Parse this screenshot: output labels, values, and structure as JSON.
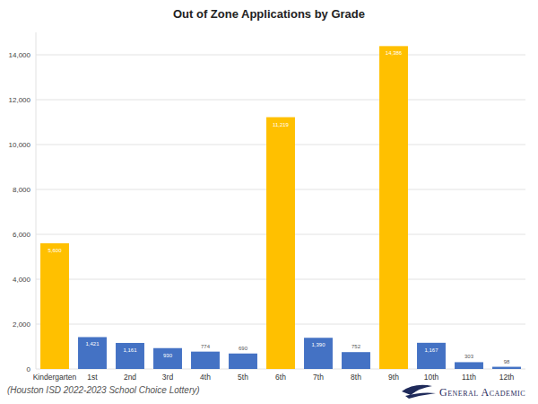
{
  "chart_data": {
    "type": "bar",
    "title": "Out of Zone Applications by Grade",
    "categories": [
      "Kindergarten",
      "1st",
      "2nd",
      "3rd",
      "4th",
      "5th",
      "6th",
      "7th",
      "8th",
      "9th",
      "10th",
      "11th",
      "12th"
    ],
    "values": [
      5600,
      1421,
      1161,
      930,
      774,
      690,
      11219,
      1390,
      752,
      14386,
      1167,
      303,
      98
    ],
    "value_labels": [
      "5,600",
      "1,421",
      "1,161",
      "930",
      "774",
      "690",
      "11,219",
      "1,390",
      "752",
      "14,386",
      "1,167",
      "303",
      "98"
    ],
    "colors": [
      "#ffc000",
      "#4472c4",
      "#4472c4",
      "#4472c4",
      "#4472c4",
      "#4472c4",
      "#ffc000",
      "#4472c4",
      "#4472c4",
      "#ffc000",
      "#4472c4",
      "#4472c4",
      "#4472c4"
    ],
    "ylim": [
      0,
      15000
    ],
    "yticks": [
      0,
      {
        "value": 2000,
        "label": "2,000"
      },
      {
        "value": 4000,
        "label": "4,000"
      },
      {
        "value": 6000,
        "label": "6,000"
      },
      {
        "value": 8000,
        "label": "8,000"
      },
      {
        "value": 10000,
        "label": "10,000"
      },
      {
        "value": 12000,
        "label": "12,000"
      },
      {
        "value": 14000,
        "label": "14,000"
      }
    ],
    "grid": true,
    "data_labels": true,
    "annotations": [
      "(Houston ISD 2022-2023 School Choice Lottery)",
      "General Academic"
    ]
  }
}
